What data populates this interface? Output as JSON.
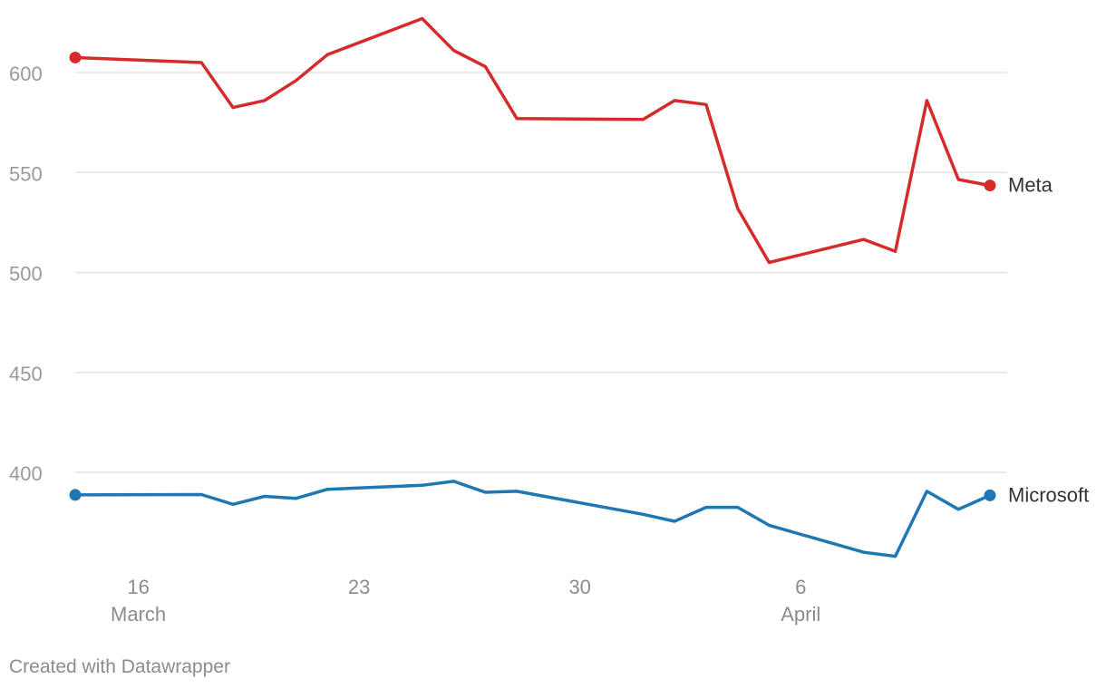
{
  "chart_data": {
    "type": "line",
    "x": [
      "2024-03-14",
      "2024-03-18",
      "2024-03-19",
      "2024-03-20",
      "2024-03-21",
      "2024-03-22",
      "2024-03-25",
      "2024-03-26",
      "2024-03-27",
      "2024-03-28",
      "2024-04-01",
      "2024-04-02",
      "2024-04-03",
      "2024-04-04",
      "2024-04-05",
      "2024-04-08",
      "2024-04-09",
      "2024-04-10",
      "2024-04-11",
      "2024-04-12"
    ],
    "series": [
      {
        "name": "Meta",
        "color": "#d62b2b",
        "values": [
          607.5,
          605,
          582.5,
          586,
          596,
          609,
          627,
          611,
          603,
          577,
          576.5,
          586,
          584,
          532,
          505,
          516.5,
          510.5,
          586,
          546.5,
          543.5
        ]
      },
      {
        "name": "Microsoft",
        "color": "#1f77b4",
        "values": [
          388.7,
          388.9,
          384,
          388,
          387,
          391.5,
          393.5,
          395.5,
          390,
          390.5,
          379,
          375.5,
          382.5,
          382.5,
          373.5,
          360,
          358,
          390.5,
          381.5,
          388.5
        ]
      }
    ],
    "yticks": [
      400,
      450,
      500,
      550,
      600
    ],
    "ylim": [
      356,
      634
    ],
    "xticks": [
      {
        "date": "2024-03-16",
        "label": "16",
        "sublabel": "March"
      },
      {
        "date": "2024-03-23",
        "label": "23",
        "sublabel": ""
      },
      {
        "date": "2024-03-30",
        "label": "30",
        "sublabel": ""
      },
      {
        "date": "2024-04-06",
        "label": "6",
        "sublabel": "April"
      }
    ],
    "grid": true,
    "title": "",
    "xlabel": "",
    "ylabel": ""
  },
  "footer": {
    "credit": "Created with Datawrapper"
  }
}
